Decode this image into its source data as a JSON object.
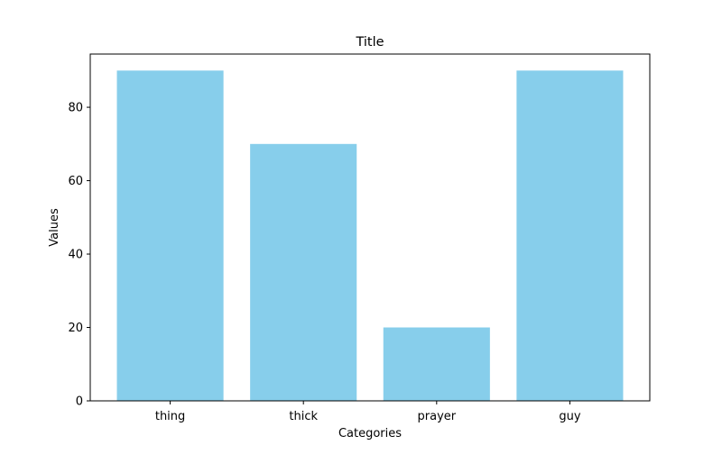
{
  "chart_data": {
    "type": "bar",
    "title": "Title",
    "xlabel": "Categories",
    "ylabel": "Values",
    "categories": [
      "thing",
      "thick",
      "prayer",
      "guy"
    ],
    "values": [
      90,
      70,
      20,
      90
    ],
    "ylim": [
      0,
      94.5
    ],
    "yticks": [
      0,
      20,
      40,
      60,
      80
    ],
    "grid": false,
    "bar_color": "#87CEEB"
  }
}
